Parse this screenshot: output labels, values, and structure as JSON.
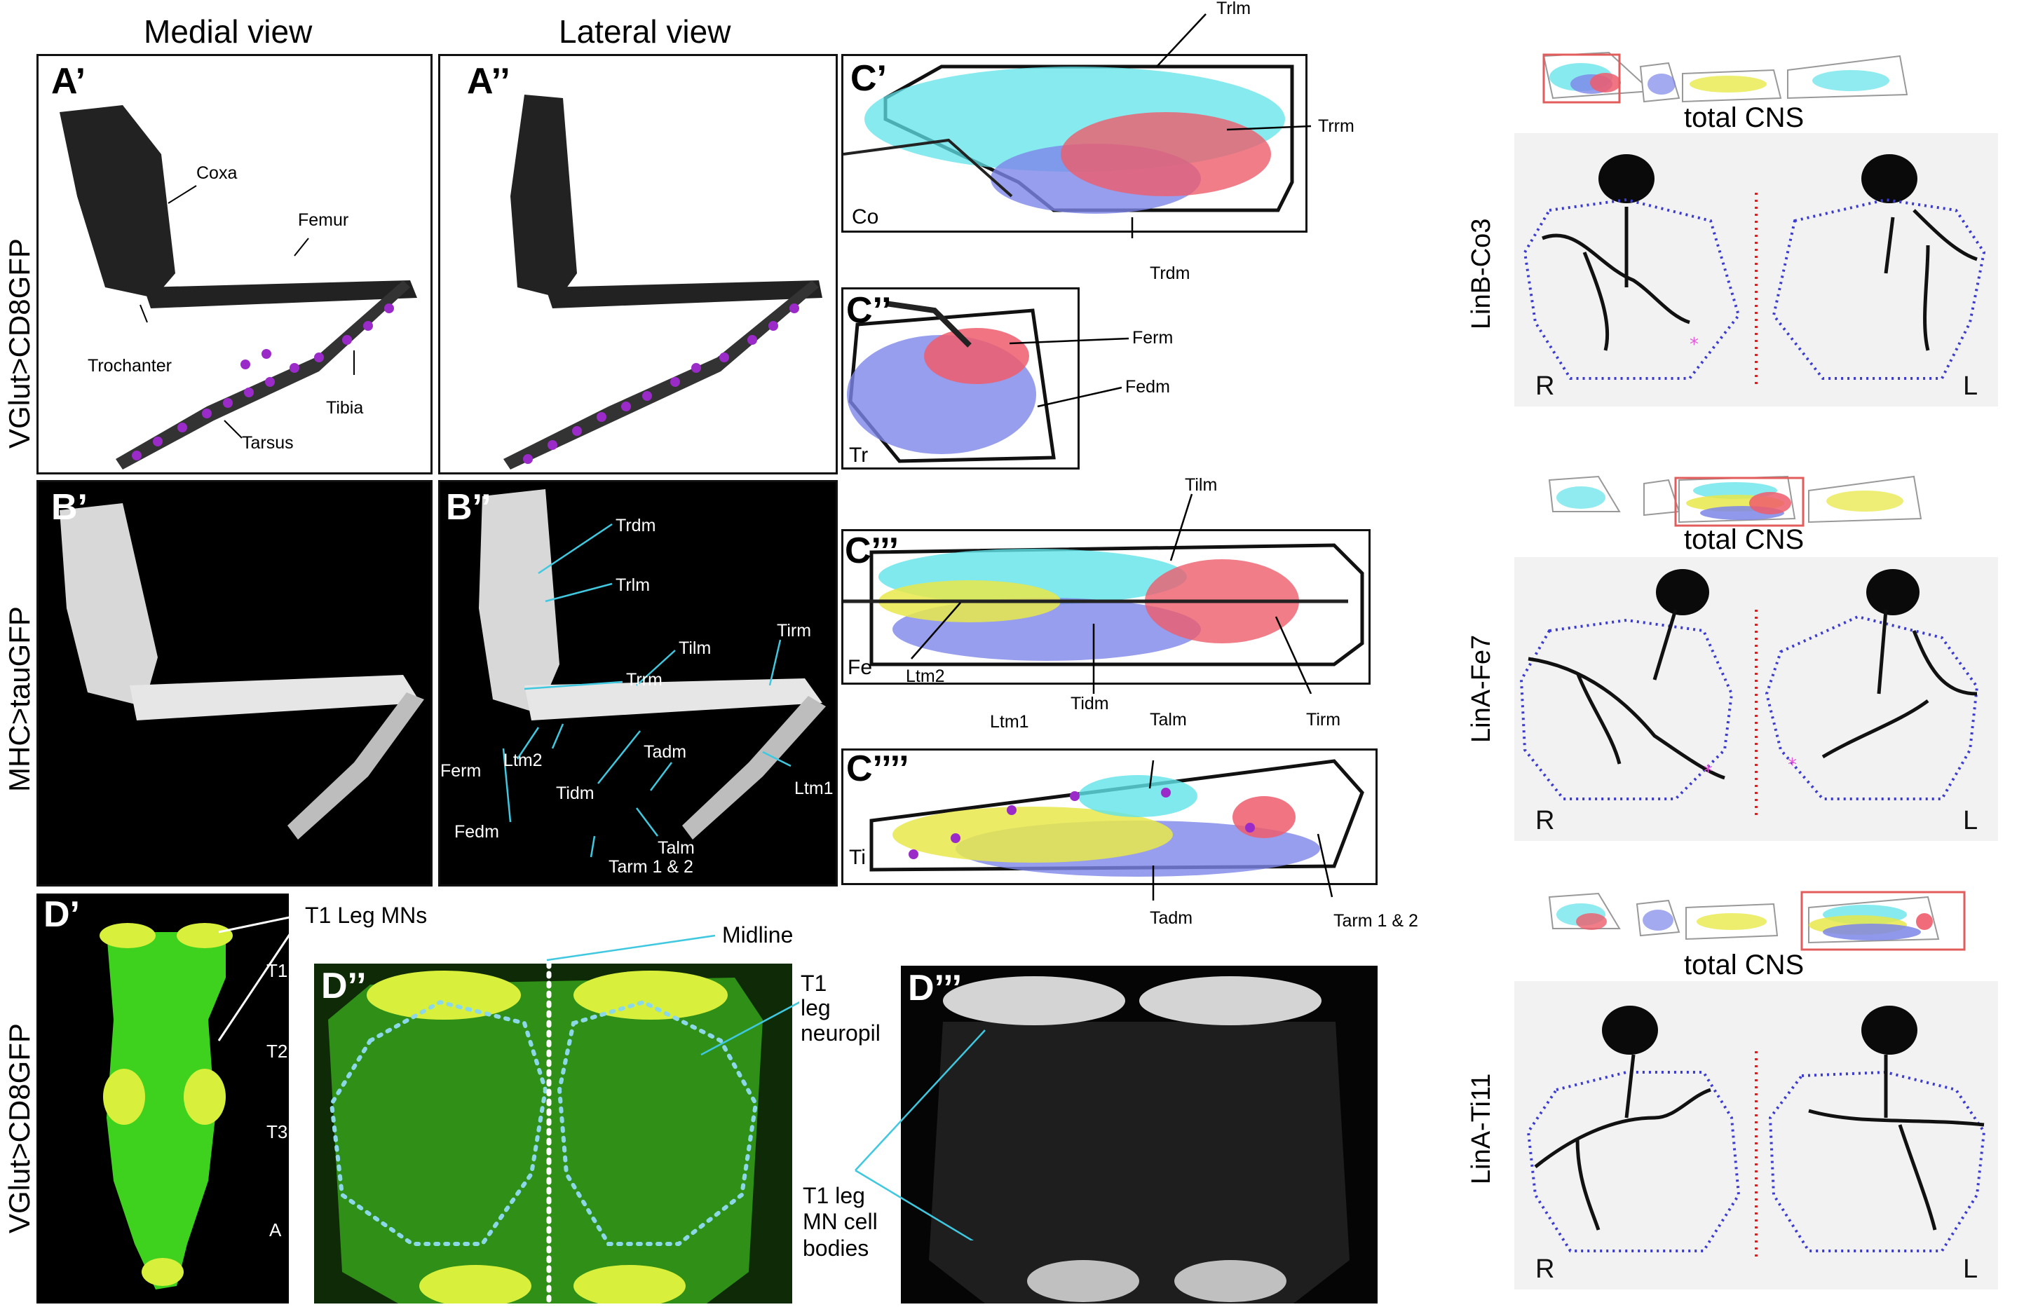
{
  "headers": {
    "medial": "Medial view",
    "lateral": "Lateral view"
  },
  "row_labels": {
    "a": "VGlut>CD8GFP",
    "b": "MHC>tauGFP",
    "d": "VGlut>CD8GFP"
  },
  "panels": {
    "a1": "A’",
    "a2": "A’’",
    "b1": "B’",
    "b2": "B’’",
    "c1": "C’",
    "c2": "C’’",
    "c3": "C’’’",
    "c4": "C’’’’",
    "d1": "D’",
    "d2": "D’’",
    "d3": "D’’’"
  },
  "a1_labels": {
    "coxa": "Coxa",
    "femur": "Femur",
    "trochanter": "Trochanter",
    "tibia": "Tibia",
    "tarsus": "Tarsus"
  },
  "b2_labels": {
    "trdm": "Trdm",
    "trlm": "Trlm",
    "tilm": "Tilm",
    "tirm": "Tirm",
    "trrm": "Trrm",
    "ferm": "Ferm",
    "ltm2": "Ltm2",
    "fedm": "Fedm",
    "tidm": "Tidm",
    "tadm": "Tadm",
    "ltm1": "Ltm1",
    "talm": "Talm",
    "tarm": "Tarm 1 & 2"
  },
  "c1": {
    "segment": "Co",
    "trlm": "Trlm",
    "trrm": "Trrm",
    "trdm": "Trdm"
  },
  "c2": {
    "segment": "Tr",
    "ferm": "Ferm",
    "fedm": "Fedm"
  },
  "c3": {
    "segment": "Fe",
    "tilm": "Tilm",
    "ltm2": "Ltm2",
    "tidm": "Tidm",
    "tirm": "Tirm"
  },
  "c4": {
    "segment": "Ti",
    "ltm1": "Ltm1",
    "talm": "Talm",
    "tadm": "Tadm",
    "tarm": "Tarm 1 & 2"
  },
  "d1": {
    "mns": "T1 Leg MNs",
    "t1": "T1",
    "t2": "T2",
    "t3": "T3",
    "a": "A"
  },
  "d2": {
    "midline": "Midline",
    "neuropil_1": "T1",
    "neuropil_2": "leg",
    "neuropil_3": "neuropil"
  },
  "d3": {
    "cells_1": "T1 leg",
    "cells_2": "MN cell",
    "cells_3": "bodies"
  },
  "right": {
    "total_cns": "total CNS",
    "lines": [
      "LinB-Co3",
      "LinA-Fe7",
      "LinA-Ti11"
    ],
    "side_r": "R",
    "side_l": "L"
  },
  "colors": {
    "cyan": "#5fe3ea",
    "red": "#ee5c6c",
    "blue": "#7d86e8",
    "yellow": "#e8e84a",
    "arrow_cyan": "#3fc8e0",
    "outline_blue": "#3b3bd0",
    "midline_red": "#e02020",
    "gfp": "#3ed21e"
  }
}
